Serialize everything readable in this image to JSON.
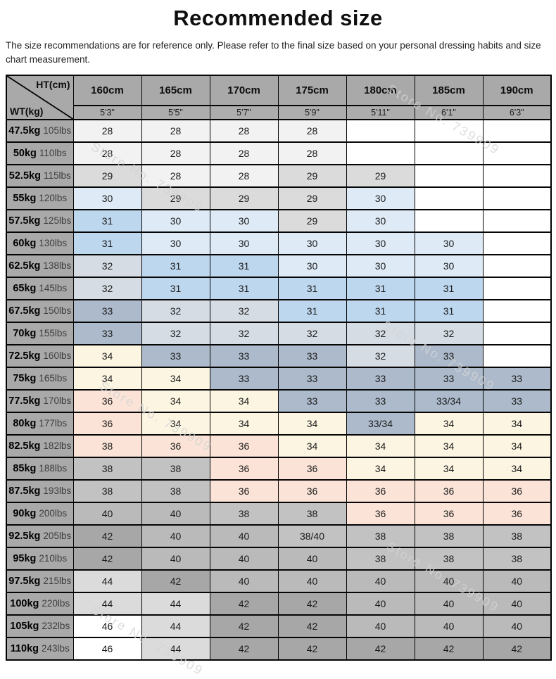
{
  "header": {
    "title": "Recommended size",
    "subtitle": "The size recommendations are for reference only. Please refer to the final size based on your personal dressing habits and size chart measurement."
  },
  "watermark": {
    "text": "Store No. 739909"
  },
  "chart_data": {
    "type": "table",
    "title": "Recommended size",
    "corner_top": "HT(cm)",
    "corner_bottom": "WT(kg)",
    "columns_cm": [
      "160cm",
      "165cm",
      "170cm",
      "175cm",
      "180cm",
      "185cm",
      "190cm"
    ],
    "columns_ft": [
      "5'3\"",
      "5'5\"",
      "5'7\"",
      "5'9\"",
      "5'11\"",
      "6'1\"",
      "6'3\""
    ],
    "palette": {
      "a": "#F2F2F2",
      "b": "#DBDBDB",
      "c": "#DEEBF7",
      "d": "#BDD7EE",
      "e": "#D5DCE4",
      "f": "#ACBACB",
      "g": "#FBF5E1",
      "h": "#FBE4D7",
      "i": "#C2C2C2",
      "j": "#BABABA",
      "k": "#A7A7A7",
      "w": "#FFFFFF"
    },
    "rows": [
      {
        "kg": "47.5kg",
        "lbs": "105lbs",
        "sizes": [
          "28",
          "28",
          "28",
          "28",
          "",
          "",
          ""
        ],
        "colors": "aaaawww"
      },
      {
        "kg": "50kg",
        "lbs": "110lbs",
        "sizes": [
          "28",
          "28",
          "28",
          "28",
          "",
          "",
          ""
        ],
        "colors": "aaaawww"
      },
      {
        "kg": "52.5kg",
        "lbs": "115lbs",
        "sizes": [
          "29",
          "28",
          "28",
          "29",
          "29",
          "",
          ""
        ],
        "colors": "baabbww"
      },
      {
        "kg": "55kg",
        "lbs": "120lbs",
        "sizes": [
          "30",
          "29",
          "29",
          "29",
          "30",
          "",
          ""
        ],
        "colors": "cbbbcww"
      },
      {
        "kg": "57.5kg",
        "lbs": "125lbs",
        "sizes": [
          "31",
          "30",
          "30",
          "29",
          "30",
          "",
          ""
        ],
        "colors": "dccbcww"
      },
      {
        "kg": "60kg",
        "lbs": "130lbs",
        "sizes": [
          "31",
          "30",
          "30",
          "30",
          "30",
          "30",
          ""
        ],
        "colors": "dcccccw"
      },
      {
        "kg": "62.5kg",
        "lbs": "138lbs",
        "sizes": [
          "32",
          "31",
          "31",
          "30",
          "30",
          "30",
          ""
        ],
        "colors": "eddcccw"
      },
      {
        "kg": "65kg",
        "lbs": "145lbs",
        "sizes": [
          "32",
          "31",
          "31",
          "31",
          "31",
          "31",
          ""
        ],
        "colors": "edddddw"
      },
      {
        "kg": "67.5kg",
        "lbs": "150lbs",
        "sizes": [
          "33",
          "32",
          "32",
          "31",
          "31",
          "31",
          ""
        ],
        "colors": "feedddw"
      },
      {
        "kg": "70kg",
        "lbs": "155lbs",
        "sizes": [
          "33",
          "32",
          "32",
          "32",
          "32",
          "32",
          ""
        ],
        "colors": "feeeeew"
      },
      {
        "kg": "72.5kg",
        "lbs": "160lbs",
        "sizes": [
          "34",
          "33",
          "33",
          "33",
          "32",
          "33",
          ""
        ],
        "colors": "gfffefw"
      },
      {
        "kg": "75kg",
        "lbs": "165lbs",
        "sizes": [
          "34",
          "34",
          "33",
          "33",
          "33",
          "33",
          "33"
        ],
        "colors": "ggfffff"
      },
      {
        "kg": "77.5kg",
        "lbs": "170lbs",
        "sizes": [
          "36",
          "34",
          "34",
          "33",
          "33",
          "33/34",
          "33"
        ],
        "colors": "hggffff"
      },
      {
        "kg": "80kg",
        "lbs": "177lbs",
        "sizes": [
          "36",
          "34",
          "34",
          "34",
          "33/34",
          "34",
          "34"
        ],
        "colors": "hgggfgg"
      },
      {
        "kg": "82.5kg",
        "lbs": "182lbs",
        "sizes": [
          "38",
          "36",
          "36",
          "34",
          "34",
          "34",
          "34"
        ],
        "colors": "hhhgggg"
      },
      {
        "kg": "85kg",
        "lbs": "188lbs",
        "sizes": [
          "38",
          "38",
          "36",
          "36",
          "34",
          "34",
          "34"
        ],
        "colors": "iihhggg"
      },
      {
        "kg": "87.5kg",
        "lbs": "193lbs",
        "sizes": [
          "38",
          "38",
          "36",
          "36",
          "36",
          "36",
          "36"
        ],
        "colors": "iihhhhh"
      },
      {
        "kg": "90kg",
        "lbs": "200lbs",
        "sizes": [
          "40",
          "40",
          "38",
          "38",
          "36",
          "36",
          "36"
        ],
        "colors": "jjiihhh"
      },
      {
        "kg": "92.5kg",
        "lbs": "205lbs",
        "sizes": [
          "42",
          "40",
          "40",
          "38/40",
          "38",
          "38",
          "38"
        ],
        "colors": "kjjiiii"
      },
      {
        "kg": "95kg",
        "lbs": "210lbs",
        "sizes": [
          "42",
          "40",
          "40",
          "40",
          "38",
          "38",
          "38"
        ],
        "colors": "kjjjiii"
      },
      {
        "kg": "97.5kg",
        "lbs": "215lbs",
        "sizes": [
          "44",
          "42",
          "40",
          "40",
          "40",
          "40",
          "40"
        ],
        "colors": "bkjjjjj"
      },
      {
        "kg": "100kg",
        "lbs": "220lbs",
        "sizes": [
          "44",
          "44",
          "42",
          "42",
          "40",
          "40",
          "40"
        ],
        "colors": "bbkkjjj"
      },
      {
        "kg": "105kg",
        "lbs": "232lbs",
        "sizes": [
          "46",
          "44",
          "42",
          "42",
          "40",
          "40",
          "40"
        ],
        "colors": "wbkkjjj"
      },
      {
        "kg": "110kg",
        "lbs": "243lbs",
        "sizes": [
          "46",
          "44",
          "42",
          "42",
          "42",
          "42",
          "42"
        ],
        "colors": "wbkkkkk"
      }
    ]
  }
}
